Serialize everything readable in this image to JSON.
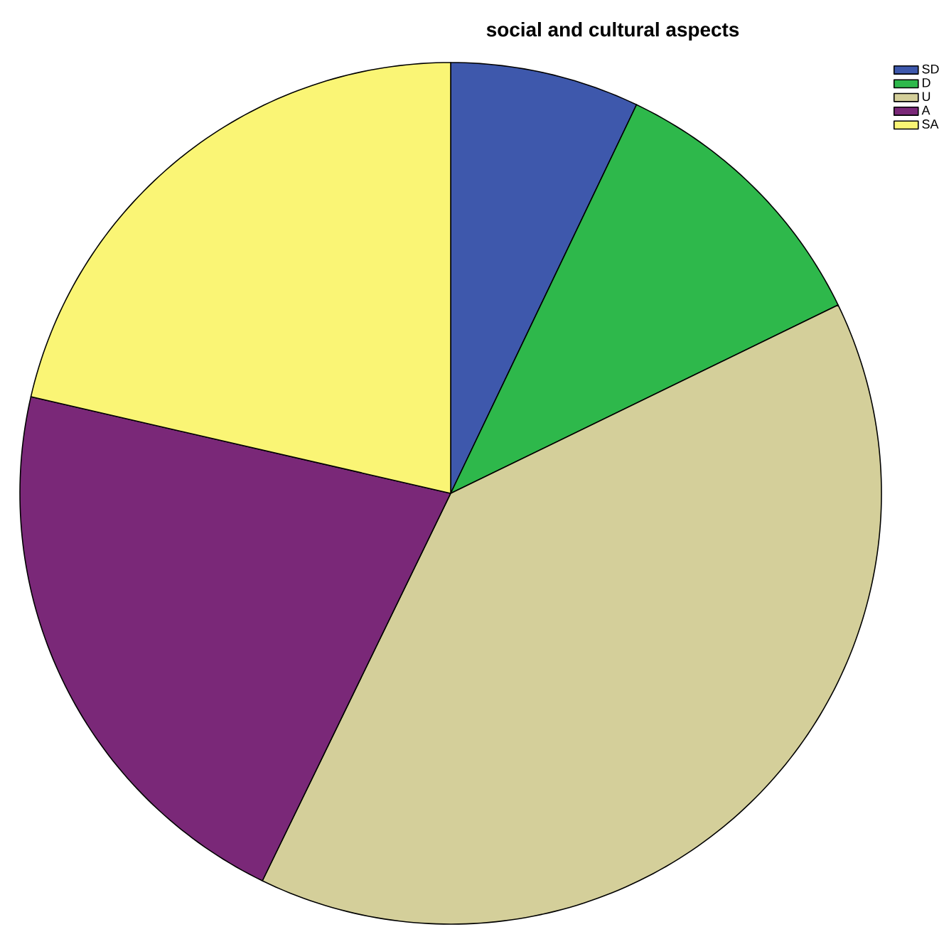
{
  "chart_data": {
    "type": "pie",
    "title": "social and cultural aspects",
    "categories": [
      "SD",
      "D",
      "U",
      "A",
      "SA"
    ],
    "values": [
      7.1,
      10.7,
      39.4,
      21.4,
      21.4
    ],
    "colors": [
      "#3e58ac",
      "#2eb84b",
      "#d4cf9a",
      "#7a2878",
      "#faf575"
    ],
    "legend": "top right"
  }
}
